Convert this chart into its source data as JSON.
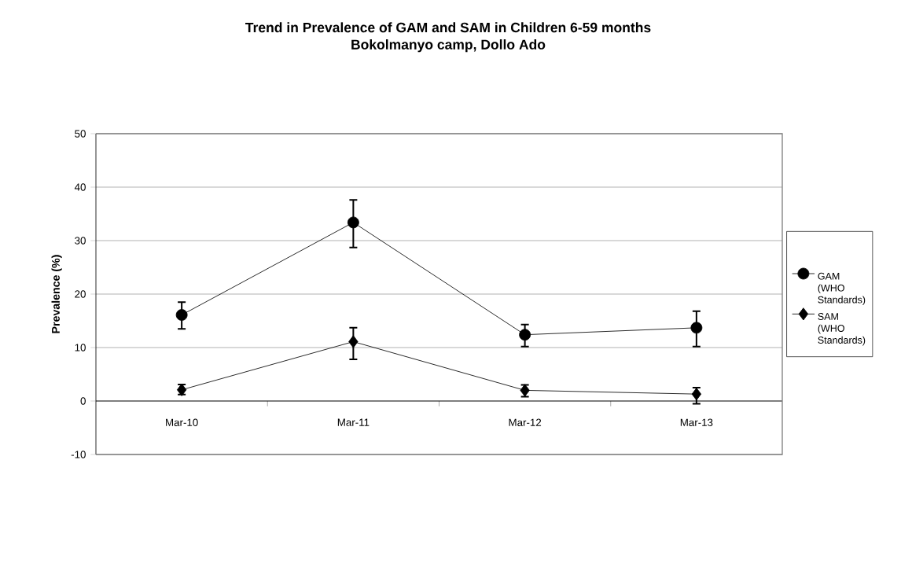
{
  "chart_data": {
    "type": "line",
    "title": "Trend in Prevalence of GAM and SAM in Children 6-59 months\nBokolmanyo camp, Dollo Ado",
    "ylabel": "Prevalence (%)",
    "categories": [
      "Mar-10",
      "Mar-11",
      "Mar-12",
      "Mar-13"
    ],
    "series": [
      {
        "name": "GAM (WHO Standards)",
        "color": "#000000",
        "marker": "circle",
        "values": [
          16.1,
          33.4,
          12.4,
          13.7
        ],
        "errors": [
          [
            13.5,
            18.5
          ],
          [
            28.7,
            37.6
          ],
          [
            10.2,
            14.3
          ],
          [
            10.2,
            16.8
          ]
        ]
      },
      {
        "name": "SAM (WHO Standards)",
        "color": "#000000",
        "marker": "diamond",
        "values": [
          2.1,
          11.1,
          2.0,
          1.3
        ],
        "errors": [
          [
            1.2,
            3.1
          ],
          [
            7.8,
            13.7
          ],
          [
            0.8,
            3.0
          ],
          [
            -0.5,
            2.5
          ]
        ]
      }
    ],
    "ylim": [
      -10,
      50
    ],
    "yticks": [
      -10,
      0,
      10,
      20,
      30,
      40,
      50
    ],
    "grid": "y",
    "legend": "right",
    "line_style": "solid"
  }
}
